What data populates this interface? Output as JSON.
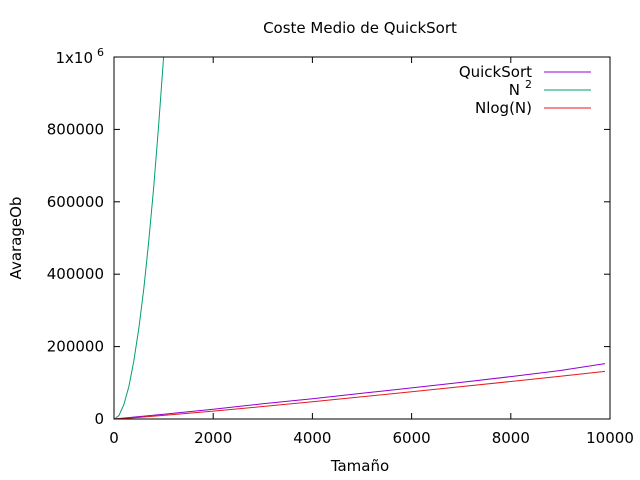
{
  "chart_data": {
    "type": "line",
    "title": "Coste Medio de QuickSort",
    "xlabel": "Tamaño",
    "ylabel": "AvarageOb",
    "xlim": [
      0,
      10000
    ],
    "ylim": [
      0,
      1000000
    ],
    "x_ticks": [
      0,
      2000,
      4000,
      6000,
      8000,
      10000
    ],
    "x_tick_labels": [
      "0",
      "2000",
      "4000",
      "6000",
      "8000",
      "10000"
    ],
    "y_ticks": [
      0,
      200000,
      400000,
      600000,
      800000
    ],
    "y_tick_labels": [
      "0",
      "200000",
      "400000",
      "600000",
      "800000"
    ],
    "y_top_label": {
      "base": "1x10",
      "exponent": "6"
    },
    "grid": false,
    "legend_position": "top-right",
    "series": [
      {
        "name": "QuickSort",
        "color": "#9400d3",
        "x": [
          10,
          500,
          1000,
          2000,
          3000,
          4000,
          5000,
          6000,
          7000,
          8000,
          9000,
          9900
        ],
        "y": [
          30,
          6500,
          13000,
          27000,
          42000,
          56000,
          71000,
          86000,
          101000,
          117000,
          134000,
          153000
        ]
      },
      {
        "name_base": "N",
        "name_exponent": "2",
        "color": "#009e73",
        "x": [
          10,
          100,
          200,
          300,
          400,
          500,
          600,
          700,
          800,
          900,
          1000
        ],
        "y": [
          100,
          10000,
          40000,
          90000,
          160000,
          250000,
          360000,
          490000,
          640000,
          810000,
          1000000
        ]
      },
      {
        "name": "Nlog(N)",
        "color": "#e41a1c",
        "x": [
          10,
          500,
          1000,
          2000,
          3000,
          4000,
          5000,
          6000,
          7000,
          8000,
          9000,
          9900
        ],
        "y": [
          30,
          4483,
          9966,
          21932,
          34652,
          47863,
          61439,
          75304,
          89412,
          103726,
          118222,
          131370
        ]
      }
    ]
  }
}
